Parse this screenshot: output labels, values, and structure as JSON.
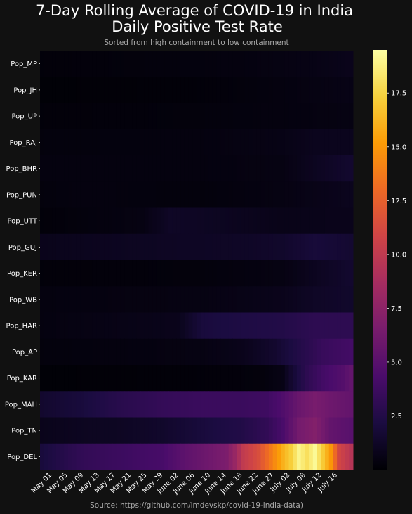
{
  "chart_data": {
    "type": "heatmap",
    "title_lines": [
      "7-Day Rolling Average of COVID-19 in India",
      "Daily Positive Test Rate"
    ],
    "subtitle": "Sorted from high containment to low containment",
    "source": "Source: https://github.com/imdevskp/covid-19-india-data)",
    "rows": [
      "Pop_MP",
      "Pop_JH",
      "Pop_UP",
      "Pop_RAJ",
      "Pop_BHR",
      "Pop_PUN",
      "Pop_UTT",
      "Pop_GUJ",
      "Pop_KER",
      "Pop_WB",
      "Pop_HAR",
      "Pop_AP",
      "Pop_KAR",
      "Pop_MAH",
      "Pop_TN",
      "Pop_DEL"
    ],
    "x_tick_labels": [
      "May 01",
      "May 05",
      "May 09",
      "May 13",
      "May 17",
      "May 21",
      "May 25",
      "May 29",
      "June 02",
      "June 06",
      "June 10",
      "June 14",
      "June 18",
      "June 22",
      "June 27",
      "July 02",
      "July 08",
      "July 12",
      "July 16"
    ],
    "colorbar": {
      "min": 0,
      "max": 19.5,
      "ticks": [
        "2.5",
        "5.0",
        "7.5",
        "10.0",
        "12.5",
        "15.0",
        "17.5"
      ],
      "colormap": "inferno"
    },
    "colormap_stops": [
      "#000004",
      "#1b0c41",
      "#4a0c6b",
      "#781c6d",
      "#a52c60",
      "#cf4446",
      "#ed6925",
      "#fb9b06",
      "#f7d13d",
      "#fcffa4"
    ],
    "series_profiles": {
      "Pop_MP": [
        [
          0,
          0.2
        ],
        [
          50,
          0.4
        ],
        [
          68,
          0.6
        ],
        [
          77,
          0.8
        ]
      ],
      "Pop_JH": [
        [
          0,
          0.1
        ],
        [
          40,
          0.2
        ],
        [
          60,
          0.4
        ],
        [
          77,
          0.6
        ]
      ],
      "Pop_UP": [
        [
          0,
          0.2
        ],
        [
          40,
          0.3
        ],
        [
          60,
          0.4
        ],
        [
          77,
          0.5
        ]
      ],
      "Pop_RAJ": [
        [
          0,
          0.3
        ],
        [
          40,
          0.4
        ],
        [
          60,
          0.6
        ],
        [
          68,
          0.9
        ],
        [
          77,
          0.9
        ]
      ],
      "Pop_BHR": [
        [
          0,
          0.4
        ],
        [
          40,
          0.4
        ],
        [
          60,
          0.5
        ],
        [
          68,
          1.0
        ],
        [
          77,
          1.5
        ]
      ],
      "Pop_PUN": [
        [
          0,
          0.3
        ],
        [
          10,
          0.4
        ],
        [
          40,
          0.3
        ],
        [
          60,
          0.5
        ],
        [
          77,
          0.9
        ]
      ],
      "Pop_UTT": [
        [
          0,
          0.2
        ],
        [
          25,
          0.5
        ],
        [
          32,
          1.2
        ],
        [
          40,
          1.1
        ],
        [
          60,
          0.7
        ],
        [
          77,
          0.8
        ]
      ],
      "Pop_GUJ": [
        [
          0,
          0.8
        ],
        [
          20,
          1.0
        ],
        [
          30,
          1.1
        ],
        [
          50,
          1.2
        ],
        [
          60,
          1.4
        ],
        [
          68,
          1.9
        ],
        [
          77,
          1.6
        ]
      ],
      "Pop_KER": [
        [
          0,
          0.2
        ],
        [
          40,
          0.3
        ],
        [
          60,
          0.5
        ],
        [
          72,
          1.2
        ],
        [
          77,
          1.5
        ]
      ],
      "Pop_WB": [
        [
          0,
          0.4
        ],
        [
          40,
          0.5
        ],
        [
          60,
          0.8
        ],
        [
          68,
          1.2
        ],
        [
          77,
          1.4
        ]
      ],
      "Pop_HAR": [
        [
          0,
          0.4
        ],
        [
          34,
          0.8
        ],
        [
          40,
          2.0
        ],
        [
          50,
          2.3
        ],
        [
          60,
          2.5
        ],
        [
          68,
          3.0
        ],
        [
          77,
          3.0
        ]
      ],
      "Pop_AP": [
        [
          0,
          0.3
        ],
        [
          40,
          0.5
        ],
        [
          50,
          0.8
        ],
        [
          58,
          1.5
        ],
        [
          64,
          2.5
        ],
        [
          70,
          3.5
        ],
        [
          77,
          4.0
        ]
      ],
      "Pop_KAR": [
        [
          0,
          0.1
        ],
        [
          40,
          0.2
        ],
        [
          55,
          0.3
        ],
        [
          60,
          0.6
        ],
        [
          62,
          1.5
        ],
        [
          66,
          3.0
        ],
        [
          70,
          4.0
        ],
        [
          75,
          4.8
        ],
        [
          77,
          5.5
        ]
      ],
      "Pop_MAH": [
        [
          0,
          1.5
        ],
        [
          10,
          2.0
        ],
        [
          20,
          2.8
        ],
        [
          30,
          3.3
        ],
        [
          40,
          3.6
        ],
        [
          50,
          3.6
        ],
        [
          56,
          3.8
        ],
        [
          60,
          4.6
        ],
        [
          64,
          5.8
        ],
        [
          68,
          6.5
        ],
        [
          72,
          6.0
        ],
        [
          77,
          5.5
        ]
      ],
      "Pop_TN": [
        [
          0,
          0.8
        ],
        [
          10,
          1.0
        ],
        [
          20,
          1.1
        ],
        [
          30,
          1.4
        ],
        [
          40,
          2.0
        ],
        [
          50,
          2.5
        ],
        [
          56,
          3.2
        ],
        [
          60,
          4.3
        ],
        [
          64,
          6.3
        ],
        [
          68,
          7.0
        ],
        [
          72,
          5.5
        ],
        [
          77,
          5.0
        ]
      ],
      "Pop_DEL": [
        [
          0,
          2.0
        ],
        [
          10,
          3.2
        ],
        [
          20,
          3.7
        ],
        [
          30,
          4.2
        ],
        [
          36,
          5.3
        ],
        [
          42,
          6.1
        ],
        [
          46,
          6.7
        ],
        [
          48,
          8.0
        ],
        [
          50,
          10.0
        ],
        [
          54,
          11.5
        ],
        [
          56,
          13.0
        ],
        [
          58,
          14.5
        ],
        [
          60,
          16.0
        ],
        [
          62,
          17.2
        ],
        [
          64,
          19.0
        ],
        [
          66,
          18.0
        ],
        [
          68,
          19.2
        ],
        [
          70,
          17.0
        ],
        [
          72,
          15.0
        ],
        [
          74,
          11.0
        ],
        [
          77,
          9.5
        ]
      ]
    },
    "num_days": 78
  }
}
